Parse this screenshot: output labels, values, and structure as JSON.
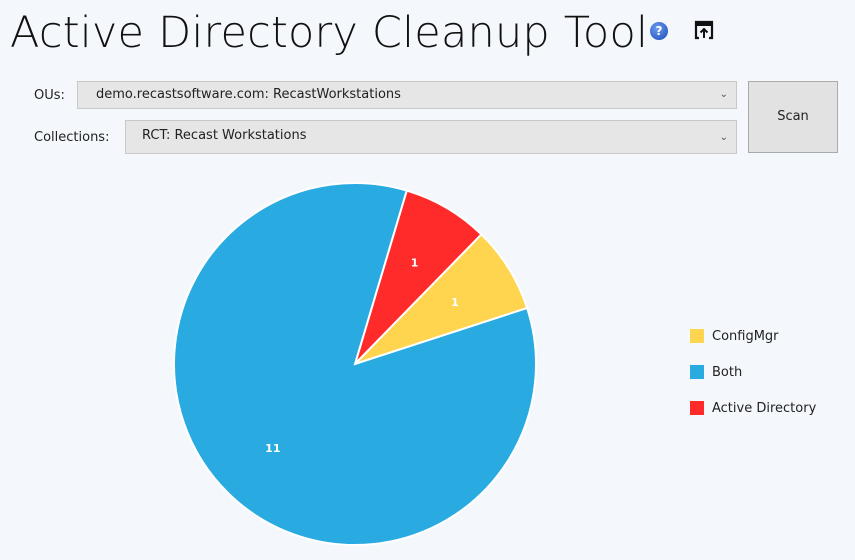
{
  "header": {
    "title": "Active Directory Cleanup Tool",
    "help_icon": "help-icon",
    "popout_icon": "popout-icon"
  },
  "form": {
    "ous_label": "OUs:",
    "ous_value": "demo.recastsoftware.com: RecastWorkstations",
    "collections_label": "Collections:",
    "collections_value": "RCT: Recast Workstations",
    "scan_label": "Scan"
  },
  "chart_data": {
    "type": "pie",
    "series": [
      {
        "name": "ConfigMgr",
        "value": 1,
        "color": "#ffd54f"
      },
      {
        "name": "Both",
        "value": 11,
        "color": "#29abe2"
      },
      {
        "name": "Active Directory",
        "value": 1,
        "color": "#ff2b2b"
      }
    ],
    "labels": [
      "1",
      "11",
      "1"
    ],
    "legend": "right"
  }
}
